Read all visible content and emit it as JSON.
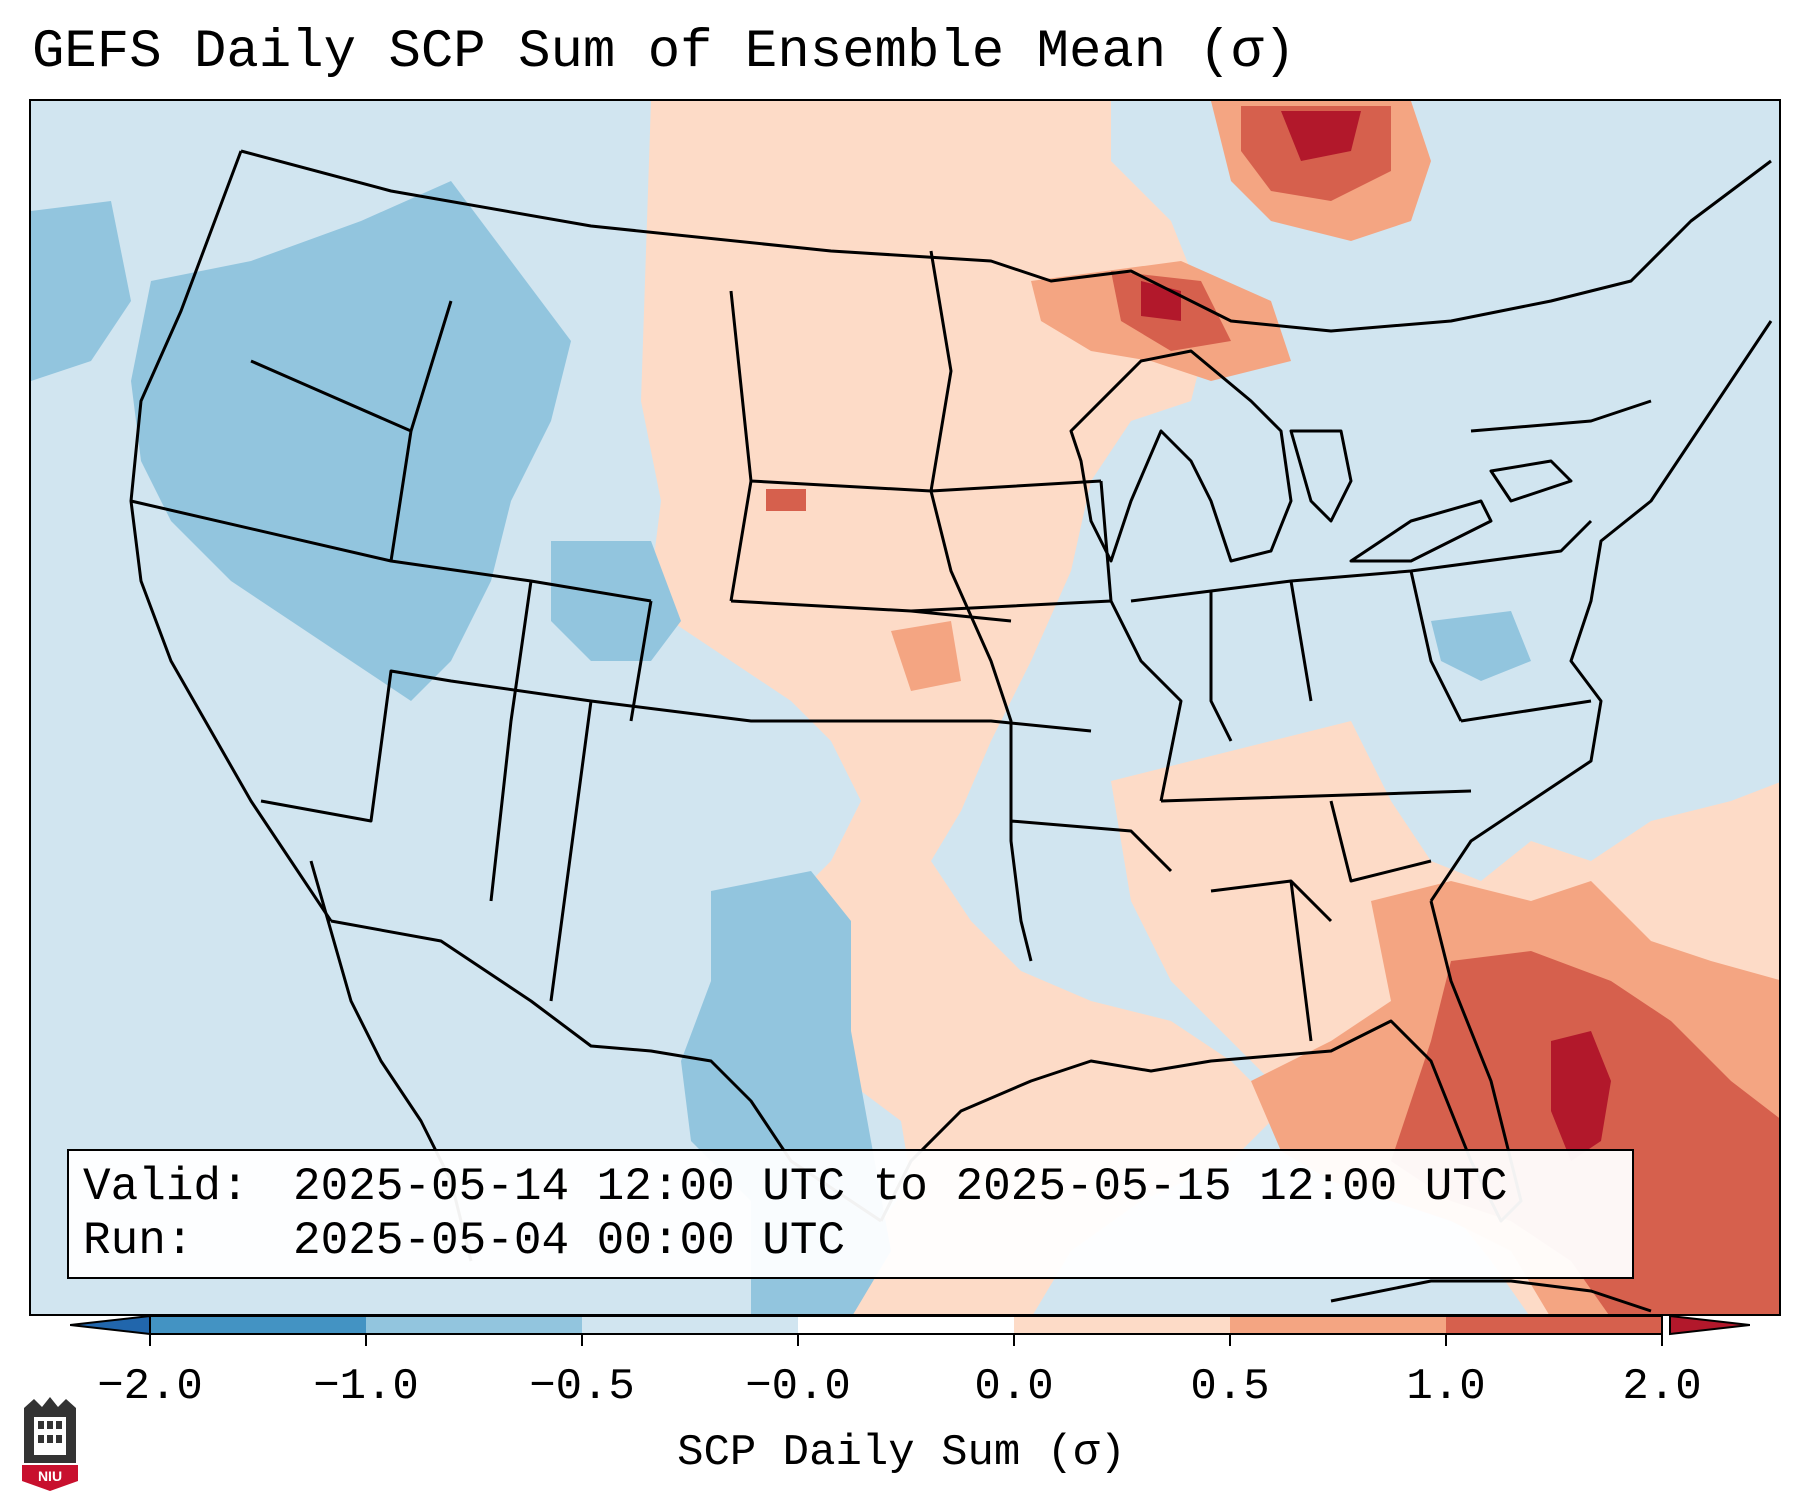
{
  "title": "GEFS Daily SCP Sum of Ensemble Mean (σ)",
  "info": {
    "valid_key": "Valid:",
    "valid_value": "2025-05-14 12:00 UTC to 2025-05-15 12:00 UTC",
    "run_key": "Run:",
    "run_value": "2025-05-04 00:00 UTC"
  },
  "colorbar": {
    "label": "SCP Daily Sum (σ)",
    "ticks": [
      "−2.0",
      "−1.0",
      "−0.5",
      "−0.0",
      "0.0",
      "0.5",
      "1.0",
      "2.0"
    ],
    "bin_colors": [
      "#4393c3",
      "#92c5de",
      "#d1e5f0",
      "#fddbc7",
      "#f4a582",
      "#d6604d"
    ],
    "under_color": "#2166ac",
    "over_color": "#b2182b"
  },
  "logo": {
    "text": "NIU"
  },
  "map": {
    "background_color": "#d1e5f0",
    "regions": [
      {
        "level": "0.0 to 0.5",
        "area": "Northern Plains and upper Midwest"
      },
      {
        "level": "1.0 to 2.0",
        "area": "Lake Superior and Ontario"
      },
      {
        "level": "0.0 to 0.5",
        "area": "Central Plains, Mississippi Valley, Southeast"
      },
      {
        "level": "0.5 to 2.0",
        "area": "Florida, Bahamas and western Atlantic"
      },
      {
        "level": "-1.0 to -0.5",
        "area": "Intermountain West and south Texas"
      }
    ]
  }
}
